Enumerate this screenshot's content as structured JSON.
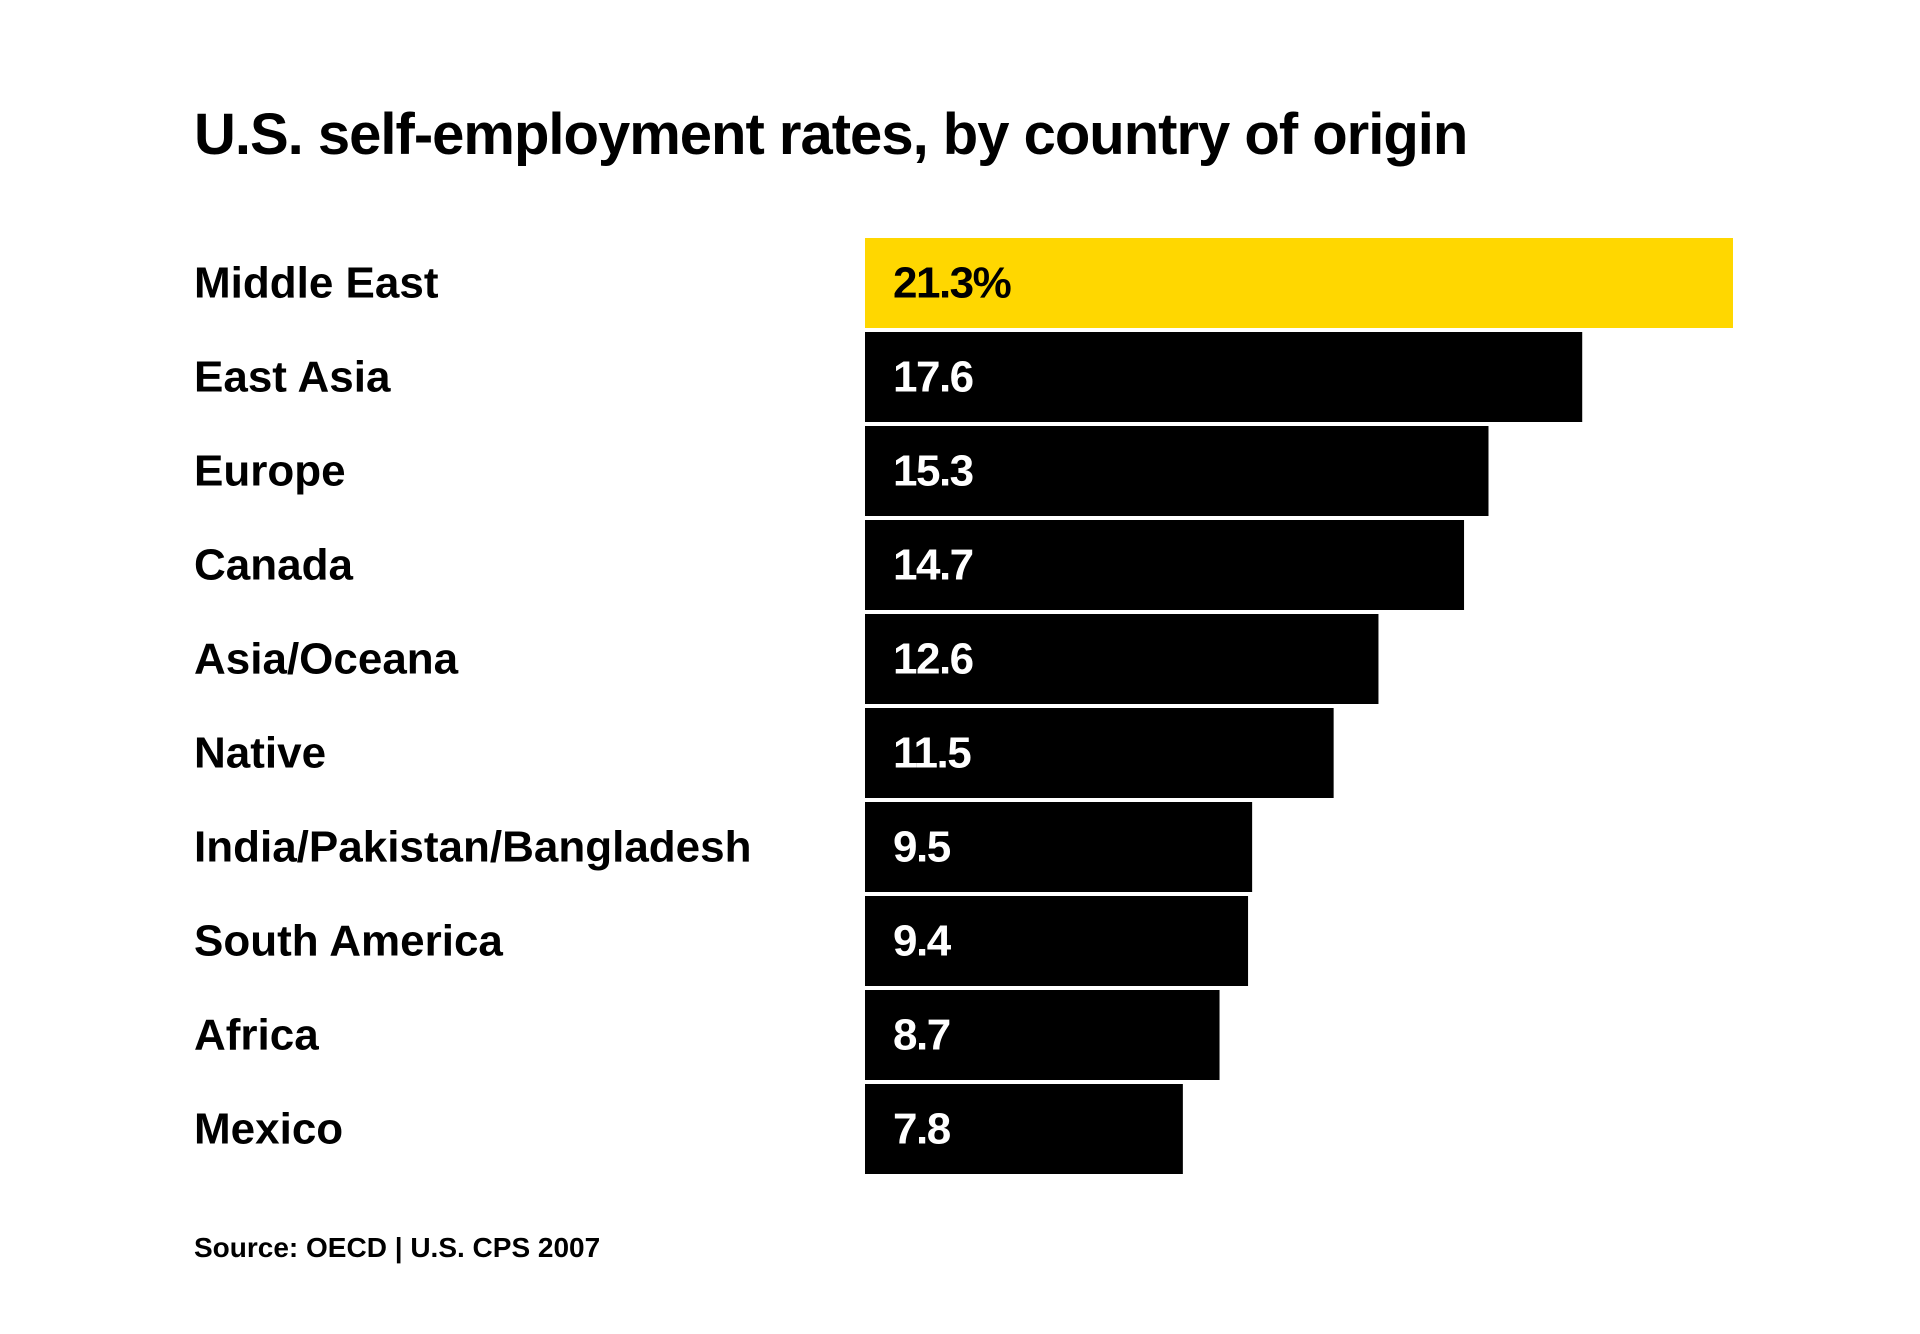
{
  "chart_data": {
    "type": "bar",
    "orientation": "horizontal",
    "title": "U.S. self-employment rates, by country of origin",
    "categories": [
      "Middle East",
      "East Asia",
      "Europe",
      "Canada",
      "Asia/Oceana",
      "Native",
      "India/Pakistan/Bangladesh",
      "South America",
      "Africa",
      "Mexico"
    ],
    "values": [
      21.3,
      17.6,
      15.3,
      14.7,
      12.6,
      11.5,
      9.5,
      9.4,
      8.7,
      7.8
    ],
    "value_labels": [
      "21.3%",
      "17.6",
      "15.3",
      "14.7",
      "12.6",
      "11.5",
      "9.5",
      "9.4",
      "8.7",
      "7.8"
    ],
    "highlight_index": 0,
    "colors": {
      "highlight": "#FFD700",
      "bar": "#000000",
      "highlight_text": "#000000",
      "bar_text": "#FFFFFF"
    },
    "xlim": [
      0,
      21.3
    ],
    "grid": false,
    "legend": "none",
    "source": "Source: OECD | U.S. CPS 2007"
  }
}
